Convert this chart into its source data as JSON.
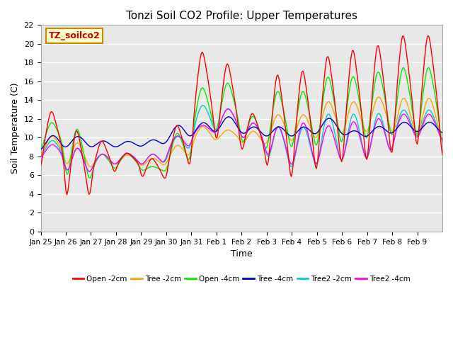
{
  "title": "Tonzi Soil CO2 Profile: Upper Temperatures",
  "xlabel": "Time",
  "ylabel": "Soil Temperature (C)",
  "ylim": [
    0,
    22
  ],
  "yticks": [
    0,
    2,
    4,
    6,
    8,
    10,
    12,
    14,
    16,
    18,
    20,
    22
  ],
  "xtick_labels": [
    "Jan 25",
    "Jan 26",
    "Jan 27",
    "Jan 28",
    "Jan 29",
    "Jan 30",
    "Jan 31",
    "Feb 1",
    "Feb 2",
    "Feb 3",
    "Feb 4",
    "Feb 5",
    "Feb 6",
    "Feb 7",
    "Feb 8",
    "Feb 9"
  ],
  "series_colors": [
    "#ff0000",
    "#ffa500",
    "#00ee00",
    "#0000cc",
    "#00cccc",
    "#ff00ff"
  ],
  "series_names": [
    "Open -2cm",
    "Tree -2cm",
    "Open -4cm",
    "Tree -4cm",
    "Tree2 -2cm",
    "Tree2 -4cm"
  ],
  "annotation_text": "TZ_soilco2",
  "annotation_color": "#cc0000",
  "annotation_bg": "#ffffcc",
  "annotation_border": "#cc8800",
  "background_color": "#dcdcdc",
  "title_fontsize": 11,
  "n_points": 384
}
